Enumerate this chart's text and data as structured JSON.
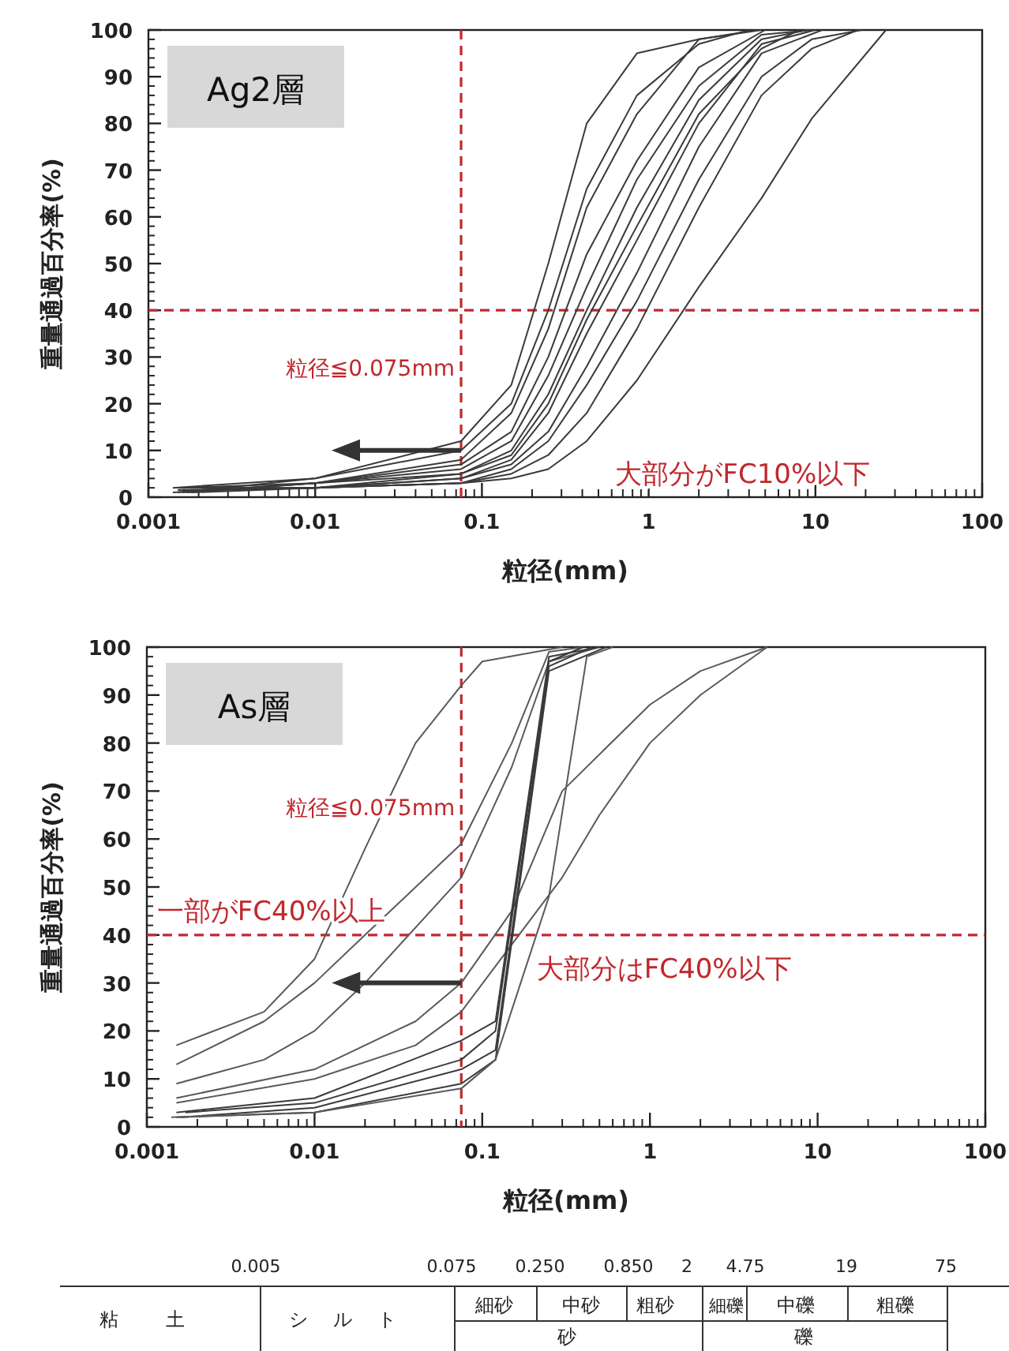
{
  "chart_data": [
    {
      "type": "line",
      "title": "Ag2層",
      "xlabel": "粒径(mm)",
      "ylabel": "重量通過百分率(%)",
      "log": "x",
      "xlim": [
        0.001,
        100
      ],
      "ylim": [
        0,
        100
      ],
      "xticks": [
        0.001,
        0.01,
        0.1,
        1,
        10,
        100
      ],
      "yticks": [
        0,
        10,
        20,
        30,
        40,
        50,
        60,
        70,
        80,
        90,
        100
      ],
      "series": [
        {
          "color": "#3a3a3a",
          "x": [
            0.0015,
            0.01,
            0.075,
            0.15,
            0.25,
            0.425,
            0.85,
            2,
            4.75
          ],
          "values": [
            1,
            4,
            12,
            24,
            50,
            80,
            95,
            98,
            100
          ]
        },
        {
          "color": "#3a3a3a",
          "x": [
            0.0016,
            0.01,
            0.075,
            0.15,
            0.25,
            0.425,
            0.85,
            2,
            4.5
          ],
          "values": [
            1,
            3,
            8,
            18,
            36,
            62,
            82,
            98,
            100
          ]
        },
        {
          "color": "#3a3a3a",
          "x": [
            0.0017,
            0.01,
            0.075,
            0.15,
            0.25,
            0.425,
            0.85,
            2,
            4.75,
            9.5
          ],
          "values": [
            1,
            3,
            6,
            12,
            26,
            45,
            68,
            88,
            99,
            100
          ]
        },
        {
          "color": "#3a3a3a",
          "x": [
            0.0014,
            0.01,
            0.075,
            0.15,
            0.25,
            0.425,
            0.85,
            2,
            4.75,
            9
          ],
          "values": [
            1,
            3,
            5,
            10,
            22,
            40,
            62,
            85,
            98,
            100
          ]
        },
        {
          "color": "#3a3a3a",
          "x": [
            0.0018,
            0.01,
            0.075,
            0.15,
            0.25,
            0.425,
            0.85,
            2,
            4.75,
            10
          ],
          "values": [
            1,
            2,
            4,
            8,
            18,
            35,
            55,
            80,
            97,
            100
          ]
        },
        {
          "color": "#3a3a3a",
          "x": [
            0.0015,
            0.01,
            0.075,
            0.15,
            0.25,
            0.425,
            0.85,
            2,
            4.75,
            11
          ],
          "values": [
            1.5,
            2,
            4,
            7,
            14,
            28,
            48,
            75,
            95,
            100
          ]
        },
        {
          "color": "#3a3a3a",
          "x": [
            0.0016,
            0.01,
            0.075,
            0.15,
            0.25,
            0.425,
            0.85,
            2,
            4.75,
            9.5,
            19
          ],
          "values": [
            1.5,
            2,
            3,
            6,
            12,
            24,
            42,
            68,
            90,
            98,
            100
          ]
        },
        {
          "color": "#3a3a3a",
          "x": [
            0.0017,
            0.01,
            0.075,
            0.15,
            0.25,
            0.425,
            0.85,
            2,
            4.75,
            9.5,
            18
          ],
          "values": [
            1.5,
            2,
            3,
            5,
            9,
            18,
            36,
            62,
            86,
            96,
            100
          ]
        },
        {
          "color": "#3a3a3a",
          "x": [
            0.0015,
            0.01,
            0.075,
            0.15,
            0.25,
            0.425,
            0.85,
            2,
            4.75,
            9.5,
            26.5
          ],
          "values": [
            2,
            2,
            3,
            4,
            6,
            12,
            25,
            45,
            64,
            81,
            100
          ]
        },
        {
          "color": "#3a3a3a",
          "x": [
            0.0016,
            0.01,
            0.075,
            0.15,
            0.25,
            0.425,
            0.85,
            2,
            5
          ],
          "values": [
            2,
            3,
            7,
            14,
            30,
            52,
            72,
            92,
            100
          ]
        },
        {
          "color": "#3a3a3a",
          "x": [
            0.0014,
            0.01,
            0.075,
            0.15,
            0.25,
            0.425,
            0.85,
            2,
            4
          ],
          "values": [
            2,
            4,
            10,
            20,
            40,
            66,
            86,
            97,
            100
          ]
        },
        {
          "color": "#3a3a3a",
          "x": [
            0.0018,
            0.01,
            0.075,
            0.15,
            0.25,
            0.425,
            0.85,
            2,
            4.75,
            8
          ],
          "values": [
            2,
            2,
            5,
            9,
            20,
            38,
            58,
            82,
            96,
            100
          ]
        }
      ],
      "ref_lines": [
        {
          "axis": "y",
          "value": 40,
          "color": "#c0282d",
          "line_style": "dashed"
        },
        {
          "axis": "x",
          "value": 0.075,
          "color": "#c0282d",
          "line_style": "dashed"
        }
      ],
      "annotations": [
        "粒径≦0.075mm",
        "大部分がFC10%以下"
      ]
    },
    {
      "type": "line",
      "title": "As層",
      "xlabel": "粒径(mm)",
      "ylabel": "重量通過百分率(%)",
      "log": "x",
      "xlim": [
        0.001,
        100
      ],
      "ylim": [
        0,
        100
      ],
      "xticks": [
        0.001,
        0.01,
        0.1,
        1,
        10,
        100
      ],
      "yticks": [
        0,
        10,
        20,
        30,
        40,
        50,
        60,
        70,
        80,
        90,
        100
      ],
      "series": [
        {
          "color": "#5a5a5a",
          "x": [
            0.0015,
            0.005,
            0.01,
            0.02,
            0.04,
            0.075,
            0.1,
            0.3
          ],
          "values": [
            17,
            24,
            35,
            58,
            80,
            92,
            97,
            100
          ]
        },
        {
          "color": "#5a5a5a",
          "x": [
            0.0015,
            0.005,
            0.01,
            0.02,
            0.075,
            0.15,
            0.25,
            0.4
          ],
          "values": [
            13,
            22,
            30,
            40,
            59,
            80,
            99,
            100
          ]
        },
        {
          "color": "#5a5a5a",
          "x": [
            0.0015,
            0.005,
            0.01,
            0.02,
            0.075,
            0.15,
            0.25,
            0.5
          ],
          "values": [
            9,
            14,
            20,
            30,
            52,
            75,
            97,
            100
          ]
        },
        {
          "color": "#5a5a5a",
          "x": [
            0.0015,
            0.01,
            0.04,
            0.075,
            0.15,
            0.3,
            1,
            2,
            5
          ],
          "values": [
            6,
            12,
            22,
            30,
            45,
            70,
            88,
            95,
            100
          ]
        },
        {
          "color": "#5a5a5a",
          "x": [
            0.0015,
            0.01,
            0.04,
            0.075,
            0.15,
            0.3,
            0.5,
            1,
            2,
            5
          ],
          "values": [
            5,
            10,
            17,
            24,
            38,
            52,
            65,
            80,
            90,
            100
          ]
        },
        {
          "color": "#3a3a3a",
          "x": [
            0.0015,
            0.01,
            0.075,
            0.12,
            0.25,
            0.5
          ],
          "values": [
            3,
            6,
            18,
            22,
            98,
            100
          ]
        },
        {
          "color": "#3a3a3a",
          "x": [
            0.0016,
            0.01,
            0.075,
            0.12,
            0.25,
            0.45
          ],
          "values": [
            2,
            4,
            12,
            16,
            96,
            100
          ]
        },
        {
          "color": "#3a3a3a",
          "x": [
            0.0015,
            0.01,
            0.075,
            0.12,
            0.25,
            0.55
          ],
          "values": [
            2,
            3,
            9,
            14,
            95,
            100
          ]
        },
        {
          "color": "#3a3a3a",
          "x": [
            0.0017,
            0.01,
            0.075,
            0.12,
            0.25,
            0.4
          ],
          "values": [
            3,
            5,
            14,
            20,
            97,
            100
          ]
        },
        {
          "color": "#5a5a5a",
          "x": [
            0.0014,
            0.01,
            0.075,
            0.12,
            0.25,
            0.42,
            0.6
          ],
          "values": [
            2,
            3,
            8,
            14,
            48,
            98,
            100
          ]
        }
      ],
      "ref_lines": [
        {
          "axis": "y",
          "value": 40,
          "color": "#c0282d",
          "line_style": "dashed"
        },
        {
          "axis": "x",
          "value": 0.075,
          "color": "#c0282d",
          "line_style": "dashed"
        }
      ],
      "annotations": [
        "粒径≦0.075mm",
        "一部がFC40%以上",
        "大部分はFC40%以下"
      ]
    },
    {
      "type": "other",
      "annotations": [
        "0.005",
        "0.075",
        "0.250",
        "0.850",
        "2",
        "4.75",
        "19",
        "75",
        "粘土",
        "シルト",
        "細砂",
        "中砂",
        "粗砂",
        "細礫",
        "中礫",
        "粗礫",
        "砂",
        "礫"
      ]
    }
  ]
}
